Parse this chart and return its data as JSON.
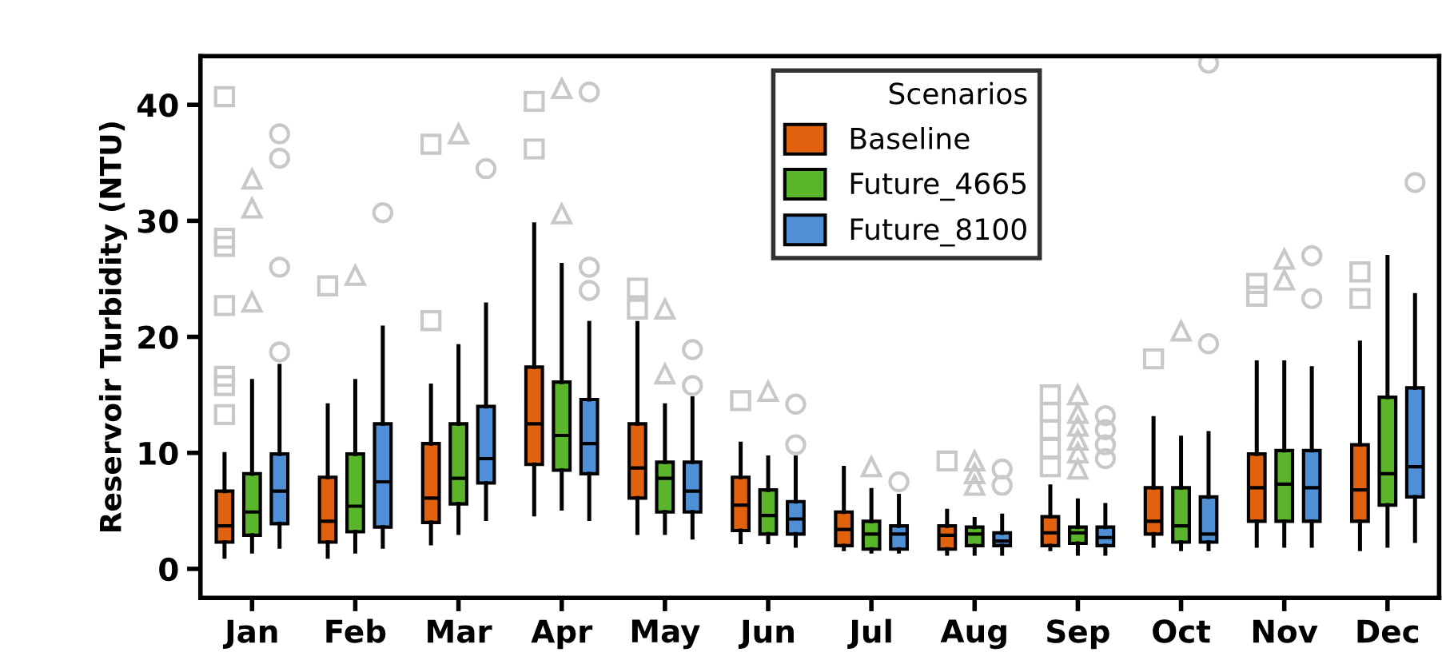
{
  "chart_data": {
    "type": "box",
    "ylabel": "Reservoir Turbidity (NTU)",
    "legend_title": "Scenarios",
    "legend": "top",
    "grid": false,
    "categories": [
      "Jan",
      "Feb",
      "Mar",
      "Apr",
      "May",
      "Jun",
      "Jul",
      "Aug",
      "Sep",
      "Oct",
      "Nov",
      "Dec"
    ],
    "ylim": [
      -2.5,
      44.2
    ],
    "yticks": [
      0,
      10,
      20,
      30,
      40
    ],
    "series": [
      {
        "name": "Baseline",
        "color": "#e0620f",
        "marker": "square",
        "boxes": [
          {
            "low": 1.05,
            "q1": 2.3,
            "median": 3.7,
            "q3": 6.7,
            "high": 9.9,
            "outliers": [
              40.7,
              28.5,
              27.8,
              22.7,
              16.6,
              15.8,
              13.3
            ]
          },
          {
            "low": 1.05,
            "q1": 2.3,
            "median": 4.1,
            "q3": 7.9,
            "high": 14.1,
            "outliers": [
              24.4
            ]
          },
          {
            "low": 2.2,
            "q1": 4.0,
            "median": 6.1,
            "q3": 10.8,
            "high": 15.8,
            "outliers": [
              36.6,
              21.4
            ]
          },
          {
            "low": 4.7,
            "q1": 9.0,
            "median": 12.5,
            "q3": 17.4,
            "high": 29.7,
            "outliers": [
              40.3,
              36.2
            ]
          },
          {
            "low": 3.1,
            "q1": 6.1,
            "median": 8.7,
            "q3": 12.5,
            "high": 21.2,
            "outliers": [
              24.2,
              22.4
            ]
          },
          {
            "low": 2.3,
            "q1": 3.3,
            "median": 5.5,
            "q3": 7.9,
            "high": 10.8,
            "outliers": [
              14.5
            ]
          },
          {
            "low": 1.7,
            "q1": 2.0,
            "median": 3.4,
            "q3": 4.9,
            "high": 8.7
          },
          {
            "low": 1.3,
            "q1": 1.7,
            "median": 2.9,
            "q3": 3.7,
            "high": 5.0,
            "outliers": [
              9.3
            ]
          },
          {
            "low": 1.7,
            "q1": 2.0,
            "median": 3.1,
            "q3": 4.5,
            "high": 7.1,
            "outliers": [
              15.0,
              13.5,
              12.0,
              10.4,
              8.8
            ]
          },
          {
            "low": 2.0,
            "q1": 3.0,
            "median": 4.1,
            "q3": 7.0,
            "high": 13.0,
            "outliers": [
              18.1
            ]
          },
          {
            "low": 2.0,
            "q1": 4.1,
            "median": 7.0,
            "q3": 9.9,
            "high": 17.8,
            "outliers": [
              24.6,
              23.5
            ]
          },
          {
            "low": 1.7,
            "q1": 4.1,
            "median": 6.8,
            "q3": 10.7,
            "high": 19.5,
            "outliers": [
              25.6,
              23.3
            ]
          }
        ]
      },
      {
        "name": "Future_4665",
        "color": "#5ab52a",
        "marker": "triangle",
        "boxes": [
          {
            "low": 1.5,
            "q1": 2.9,
            "median": 4.9,
            "q3": 8.2,
            "high": 16.2,
            "outliers": [
              33.6,
              31.1,
              23.0
            ]
          },
          {
            "low": 1.5,
            "q1": 3.2,
            "median": 5.4,
            "q3": 9.9,
            "high": 16.2,
            "outliers": [
              25.3
            ]
          },
          {
            "low": 3.1,
            "q1": 5.6,
            "median": 7.8,
            "q3": 12.5,
            "high": 19.2,
            "outliers": [
              37.5
            ]
          },
          {
            "low": 5.2,
            "q1": 8.5,
            "median": 11.5,
            "q3": 16.1,
            "high": 26.2,
            "outliers": [
              41.4,
              30.6
            ]
          },
          {
            "low": 3.1,
            "q1": 4.9,
            "median": 7.8,
            "q3": 9.2,
            "high": 14.1,
            "outliers": [
              22.4,
              16.8
            ]
          },
          {
            "low": 2.3,
            "q1": 3.0,
            "median": 4.6,
            "q3": 6.8,
            "high": 9.6,
            "outliers": [
              15.3
            ]
          },
          {
            "low": 1.5,
            "q1": 1.7,
            "median": 3.0,
            "q3": 4.1,
            "high": 6.8,
            "outliers": [
              8.8
            ]
          },
          {
            "low": 1.3,
            "q1": 2.0,
            "median": 3.0,
            "q3": 3.6,
            "high": 4.3,
            "outliers": [
              9.3,
              8.2,
              7.2
            ]
          },
          {
            "low": 1.3,
            "q1": 2.2,
            "median": 3.1,
            "q3": 3.6,
            "high": 5.9,
            "outliers": [
              15.0,
              13.4,
              12.3,
              11.1,
              10.0,
              8.6
            ]
          },
          {
            "low": 1.7,
            "q1": 2.3,
            "median": 3.7,
            "q3": 7.0,
            "high": 11.3,
            "outliers": [
              20.5
            ]
          },
          {
            "low": 2.0,
            "q1": 4.1,
            "median": 7.3,
            "q3": 10.2,
            "high": 17.8,
            "outliers": [
              26.7,
              24.9
            ]
          },
          {
            "low": 2.0,
            "q1": 5.5,
            "median": 8.2,
            "q3": 14.8,
            "high": 26.9
          }
        ]
      },
      {
        "name": "Future_8100",
        "color": "#4f8fd6",
        "marker": "circle",
        "boxes": [
          {
            "low": 1.9,
            "q1": 3.9,
            "median": 6.7,
            "q3": 9.9,
            "high": 17.5,
            "outliers": [
              37.5,
              35.4,
              26.0,
              18.7
            ]
          },
          {
            "low": 1.9,
            "q1": 3.6,
            "median": 7.5,
            "q3": 12.5,
            "high": 20.8,
            "outliers": [
              30.7
            ]
          },
          {
            "low": 4.3,
            "q1": 7.4,
            "median": 9.5,
            "q3": 14.0,
            "high": 22.8,
            "outliers": [
              34.5
            ]
          },
          {
            "low": 4.3,
            "q1": 8.2,
            "median": 10.8,
            "q3": 14.6,
            "high": 21.2,
            "outliers": [
              41.1,
              26.0,
              24.0
            ]
          },
          {
            "low": 2.7,
            "q1": 4.9,
            "median": 6.7,
            "q3": 9.2,
            "high": 14.7,
            "outliers": [
              18.9,
              15.8
            ]
          },
          {
            "low": 2.0,
            "q1": 3.0,
            "median": 4.3,
            "q3": 5.8,
            "high": 9.6,
            "outliers": [
              14.2,
              10.7
            ]
          },
          {
            "low": 1.5,
            "q1": 1.7,
            "median": 3.0,
            "q3": 3.7,
            "high": 6.3,
            "outliers": [
              7.5
            ]
          },
          {
            "low": 1.3,
            "q1": 2.0,
            "median": 2.4,
            "q3": 3.1,
            "high": 4.6,
            "outliers": [
              8.6,
              7.2
            ]
          },
          {
            "low": 1.3,
            "q1": 2.0,
            "median": 2.7,
            "q3": 3.6,
            "high": 5.5,
            "outliers": [
              13.2,
              12.0,
              10.7,
              9.5
            ]
          },
          {
            "low": 1.7,
            "q1": 2.3,
            "median": 3.0,
            "q3": 6.2,
            "high": 11.7,
            "outliers": [
              43.6,
              19.4
            ]
          },
          {
            "low": 2.0,
            "q1": 4.1,
            "median": 7.0,
            "q3": 10.2,
            "high": 17.3,
            "outliers": [
              27.0,
              23.3
            ]
          },
          {
            "low": 2.4,
            "q1": 6.2,
            "median": 8.8,
            "q3": 15.6,
            "high": 23.6,
            "outliers": [
              33.3
            ]
          }
        ]
      }
    ]
  }
}
